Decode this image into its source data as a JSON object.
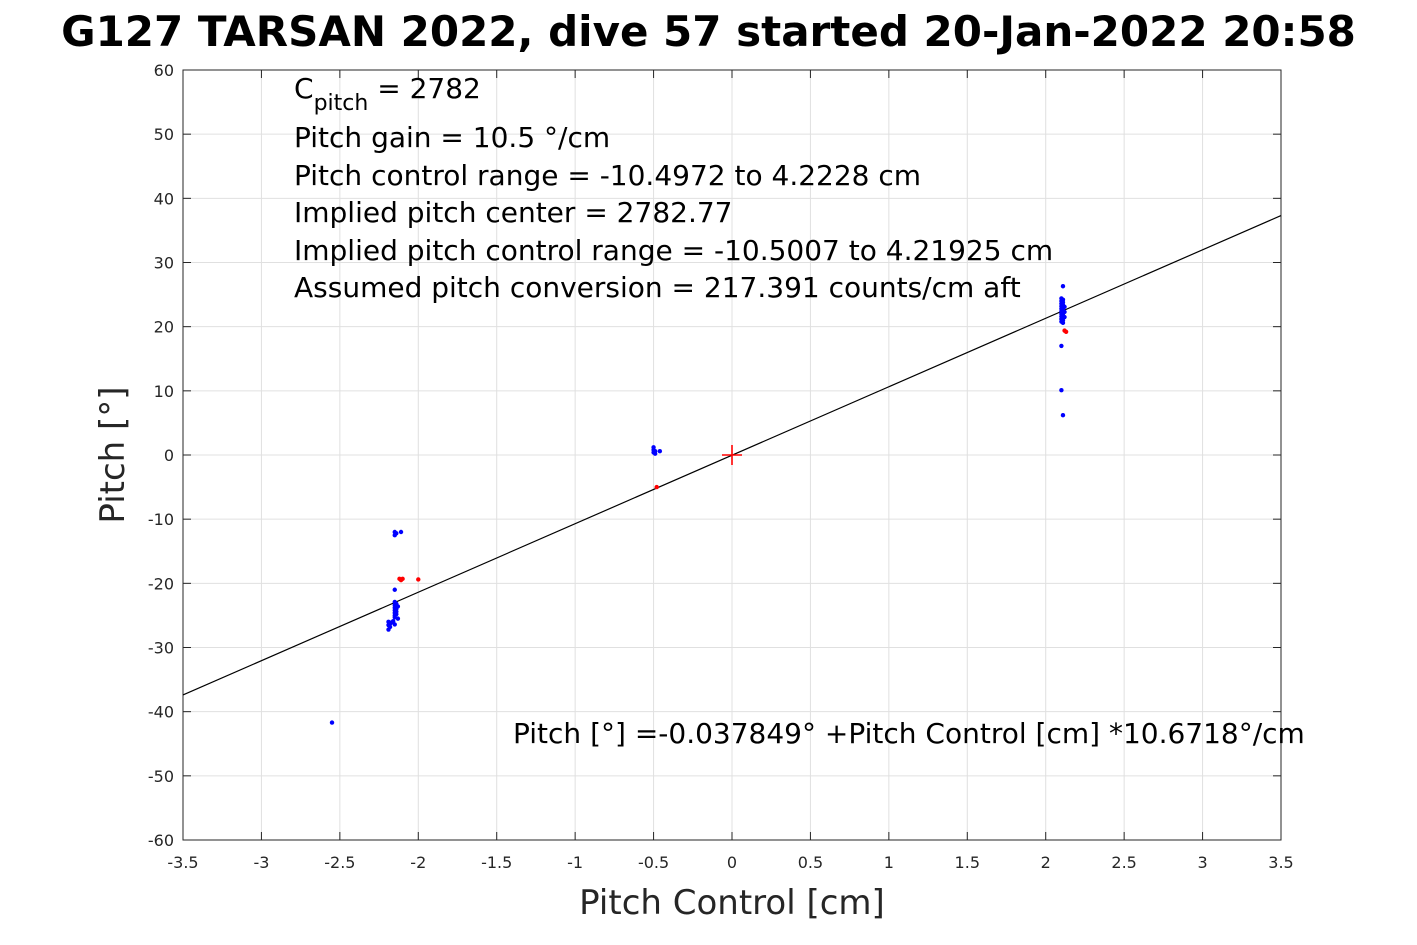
{
  "chart_data": {
    "type": "scatter",
    "title": "G127 TARSAN 2022, dive 57 started 20-Jan-2022 20:58",
    "xlabel": "Pitch Control [cm]",
    "ylabel": "Pitch [°]",
    "xlim": [
      -3.5,
      3.5
    ],
    "ylim": [
      -60,
      60
    ],
    "x_ticks": [
      "-3.5",
      "-3",
      "-2.5",
      "-2",
      "-1.5",
      "-1",
      "-0.5",
      "0",
      "0.5",
      "1",
      "1.5",
      "2",
      "2.5",
      "3",
      "3.5"
    ],
    "y_ticks": [
      "-60",
      "-50",
      "-40",
      "-30",
      "-20",
      "-10",
      "0",
      "10",
      "20",
      "30",
      "40",
      "50",
      "60"
    ],
    "grid": true,
    "annotations": {
      "cpitch": {
        "base": "C",
        "sub": "pitch",
        "rest": " = 2782"
      },
      "lines": [
        "Pitch gain = 10.5 °/cm",
        "Pitch control range = -10.4972 to 4.2228 cm",
        "Implied pitch center = 2782.77",
        "Implied pitch control range = -10.5007 to 4.21925 cm",
        "Assumed pitch conversion = 217.391 counts/cm aft"
      ],
      "fit_equation": "Pitch [°] =-0.037849° +Pitch Control [cm] *10.6718°/cm"
    },
    "fit_line": {
      "intercept": -0.037849,
      "slope": 10.6718,
      "color": "#000000"
    },
    "center_marker": {
      "x": 0,
      "y": 0,
      "color": "#ff0000"
    },
    "series": [
      {
        "color": "#0000ff",
        "points": [
          [
            -2.55,
            -41.7
          ],
          [
            -2.19,
            -26.0
          ],
          [
            -2.19,
            -26.5
          ],
          [
            -2.19,
            -27.2
          ],
          [
            -2.18,
            -26.3
          ],
          [
            -2.18,
            -26.8
          ],
          [
            -2.17,
            -26.1
          ],
          [
            -2.16,
            -25.9
          ],
          [
            -2.15,
            -26.4
          ],
          [
            -2.15,
            -21.0
          ],
          [
            -2.15,
            -22.9
          ],
          [
            -2.15,
            -23.4
          ],
          [
            -2.15,
            -23.8
          ],
          [
            -2.15,
            -24.2
          ],
          [
            -2.15,
            -24.6
          ],
          [
            -2.15,
            -25.0
          ],
          [
            -2.15,
            -25.3
          ],
          [
            -2.14,
            -23.2
          ],
          [
            -2.14,
            -24.0
          ],
          [
            -2.14,
            -24.4
          ],
          [
            -2.14,
            -24.8
          ],
          [
            -2.13,
            -23.6
          ],
          [
            -2.13,
            -25.5
          ],
          [
            -2.15,
            -12.0
          ],
          [
            -2.15,
            -12.5
          ],
          [
            -2.14,
            -12.2
          ],
          [
            -2.11,
            -12.0
          ],
          [
            -0.5,
            1.2
          ],
          [
            -0.5,
            0.8
          ],
          [
            -0.5,
            0.4
          ],
          [
            -0.49,
            0.6
          ],
          [
            -0.49,
            0.2
          ],
          [
            -0.46,
            0.6
          ],
          [
            2.11,
            26.3
          ],
          [
            2.1,
            24.4
          ],
          [
            2.1,
            24.0
          ],
          [
            2.1,
            23.6
          ],
          [
            2.1,
            23.2
          ],
          [
            2.1,
            22.8
          ],
          [
            2.1,
            22.4
          ],
          [
            2.1,
            22.0
          ],
          [
            2.1,
            21.6
          ],
          [
            2.1,
            21.2
          ],
          [
            2.1,
            20.8
          ],
          [
            2.11,
            24.2
          ],
          [
            2.11,
            23.8
          ],
          [
            2.11,
            23.4
          ],
          [
            2.11,
            23.0
          ],
          [
            2.11,
            22.6
          ],
          [
            2.11,
            22.2
          ],
          [
            2.11,
            21.8
          ],
          [
            2.11,
            21.4
          ],
          [
            2.11,
            21.0
          ],
          [
            2.11,
            20.6
          ],
          [
            2.12,
            23.1
          ],
          [
            2.12,
            22.3
          ],
          [
            2.12,
            21.5
          ],
          [
            2.1,
            17.0
          ],
          [
            2.1,
            10.1
          ],
          [
            2.11,
            6.2
          ]
        ]
      },
      {
        "color": "#ff0000",
        "points": [
          [
            -2.12,
            -19.3
          ],
          [
            -2.11,
            -19.5
          ],
          [
            -2.1,
            -19.3
          ],
          [
            -2.0,
            -19.4
          ],
          [
            -0.48,
            -5.0
          ],
          [
            2.12,
            19.4
          ],
          [
            2.13,
            19.2
          ]
        ]
      }
    ]
  }
}
